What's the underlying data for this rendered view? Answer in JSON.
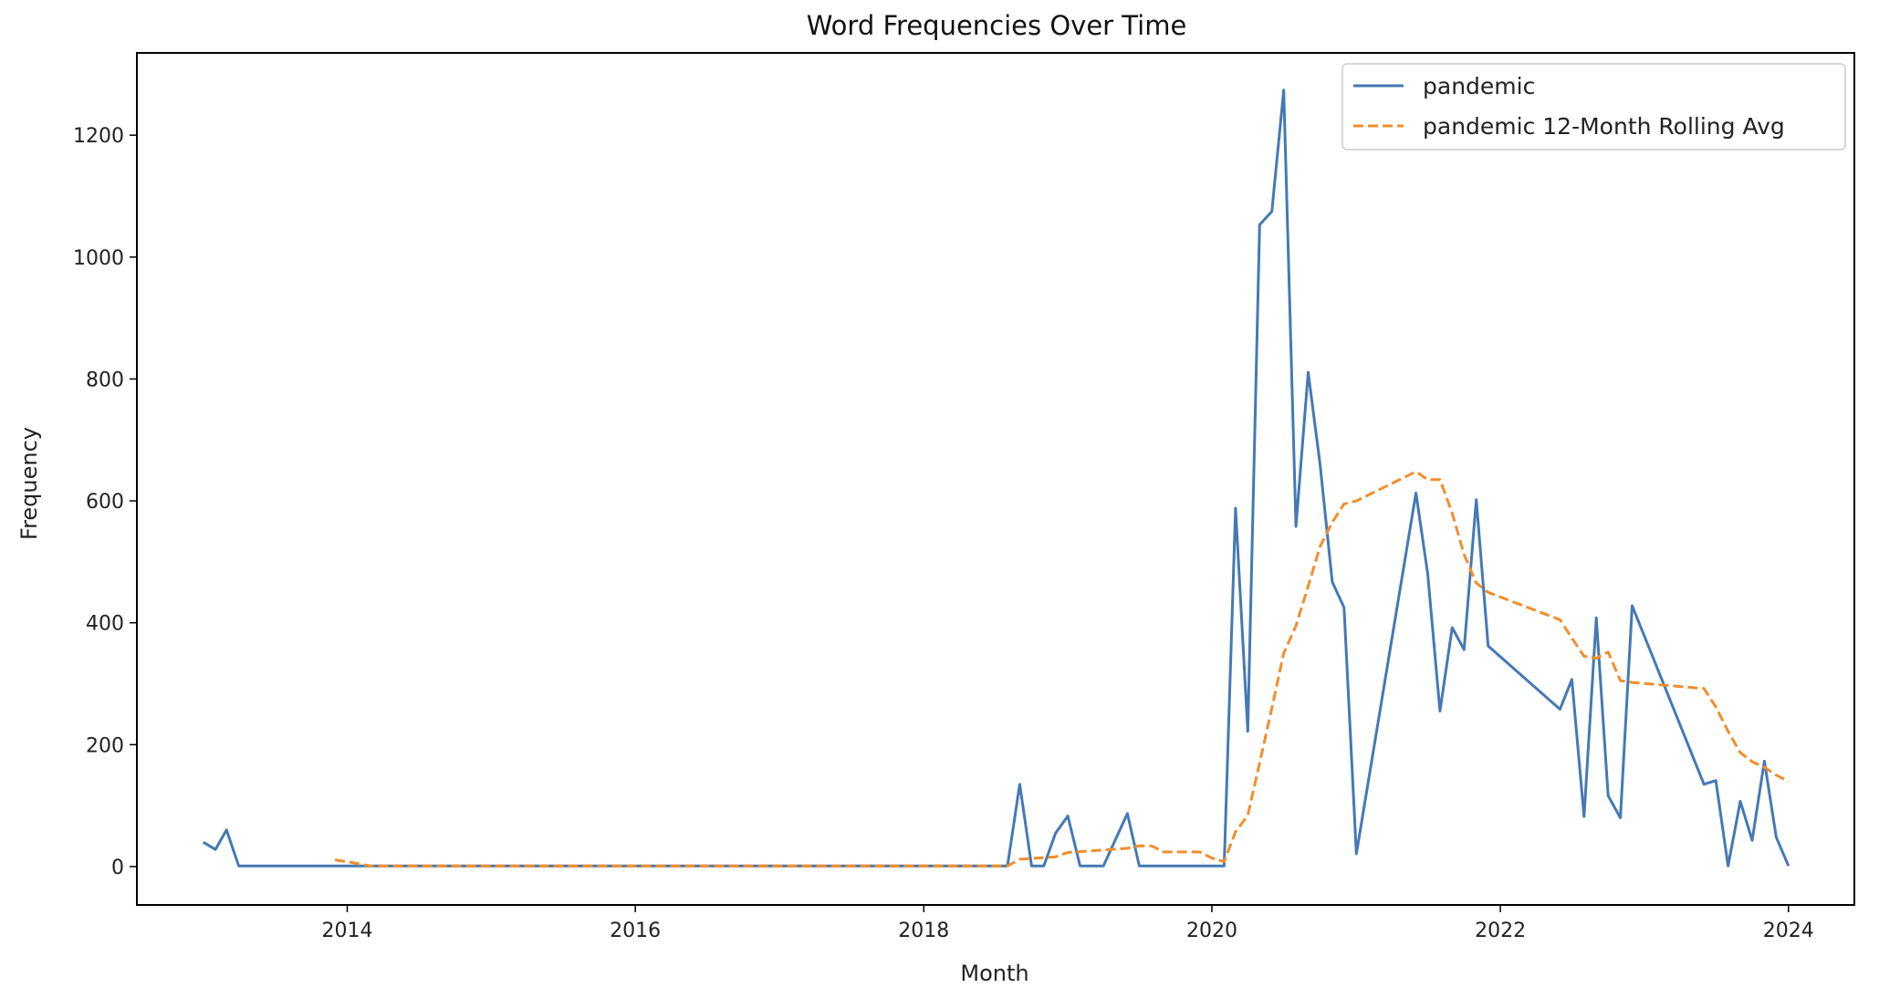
{
  "chart_data": {
    "type": "line",
    "title": "Word Frequencies Over Time",
    "xlabel": "Month",
    "ylabel": "Frequency",
    "x_ticks": [
      "2014",
      "2016",
      "2018",
      "2020",
      "2022",
      "2024"
    ],
    "y_ticks": [
      0,
      200,
      400,
      600,
      800,
      1000,
      1200
    ],
    "xlim": [
      "2012-07-17",
      "2024-06-16"
    ],
    "ylim": [
      -63,
      1335
    ],
    "legend_position": "top-right",
    "colors": {
      "series": "#4479b5",
      "rolling": "#f28e2b",
      "axes": "#000000"
    },
    "series": [
      {
        "name": "pandemic",
        "style": "solid",
        "points": [
          [
            "2013-01-01",
            40
          ],
          [
            "2013-02-01",
            28
          ],
          [
            "2013-03-01",
            60
          ],
          [
            "2013-04-01",
            1
          ],
          [
            "2013-12-01",
            1
          ],
          [
            "2014-06-01",
            1
          ],
          [
            "2015-06-01",
            1
          ],
          [
            "2016-06-01",
            1
          ],
          [
            "2017-06-01",
            1
          ],
          [
            "2018-06-01",
            1
          ],
          [
            "2018-08-01",
            1
          ],
          [
            "2018-09-01",
            135
          ],
          [
            "2018-10-01",
            1
          ],
          [
            "2018-11-01",
            1
          ],
          [
            "2018-12-01",
            55
          ],
          [
            "2019-01-01",
            83
          ],
          [
            "2019-02-01",
            1
          ],
          [
            "2019-04-01",
            1
          ],
          [
            "2019-06-01",
            87
          ],
          [
            "2019-07-01",
            1
          ],
          [
            "2020-02-01",
            1
          ],
          [
            "2020-03-01",
            588
          ],
          [
            "2020-04-01",
            222
          ],
          [
            "2020-05-01",
            1053
          ],
          [
            "2020-06-01",
            1075
          ],
          [
            "2020-07-01",
            1274
          ],
          [
            "2020-08-01",
            558
          ],
          [
            "2020-09-01",
            811
          ],
          [
            "2020-10-01",
            660
          ],
          [
            "2020-11-01",
            467
          ],
          [
            "2020-12-01",
            425
          ],
          [
            "2021-01-01",
            21
          ],
          [
            "2021-06-01",
            613
          ],
          [
            "2021-07-01",
            480
          ],
          [
            "2021-08-01",
            255
          ],
          [
            "2021-09-01",
            392
          ],
          [
            "2021-10-01",
            356
          ],
          [
            "2021-11-01",
            602
          ],
          [
            "2021-12-01",
            362
          ],
          [
            "2022-06-01",
            258
          ],
          [
            "2022-07-01",
            307
          ],
          [
            "2022-08-01",
            82
          ],
          [
            "2022-09-01",
            408
          ],
          [
            "2022-10-01",
            116
          ],
          [
            "2022-11-01",
            80
          ],
          [
            "2022-12-01",
            428
          ],
          [
            "2023-06-01",
            135
          ],
          [
            "2023-07-01",
            141
          ],
          [
            "2023-08-01",
            1
          ],
          [
            "2023-09-01",
            107
          ],
          [
            "2023-10-01",
            43
          ],
          [
            "2023-11-01",
            173
          ],
          [
            "2023-12-01",
            48
          ],
          [
            "2024-01-01",
            1
          ]
        ]
      },
      {
        "name": "pandemic 12-Month Rolling Avg",
        "style": "dashed",
        "points": [
          [
            "2013-12-01",
            11
          ],
          [
            "2014-01-01",
            8
          ],
          [
            "2014-03-01",
            1
          ],
          [
            "2015-06-01",
            1
          ],
          [
            "2017-06-01",
            1
          ],
          [
            "2018-08-01",
            1
          ],
          [
            "2018-09-01",
            12
          ],
          [
            "2018-12-01",
            16
          ],
          [
            "2019-01-01",
            23
          ],
          [
            "2019-06-01",
            30
          ],
          [
            "2019-07-01",
            34
          ],
          [
            "2019-08-01",
            34
          ],
          [
            "2019-09-01",
            24
          ],
          [
            "2019-12-01",
            24
          ],
          [
            "2020-01-01",
            14
          ],
          [
            "2020-02-01",
            8
          ],
          [
            "2020-03-01",
            57
          ],
          [
            "2020-04-01",
            84
          ],
          [
            "2020-05-01",
            170
          ],
          [
            "2020-06-01",
            260
          ],
          [
            "2020-07-01",
            350
          ],
          [
            "2020-08-01",
            395
          ],
          [
            "2020-09-01",
            460
          ],
          [
            "2020-10-01",
            525
          ],
          [
            "2020-11-01",
            565
          ],
          [
            "2020-12-01",
            595
          ],
          [
            "2021-01-01",
            600
          ],
          [
            "2021-06-01",
            648
          ],
          [
            "2021-07-01",
            635
          ],
          [
            "2021-08-01",
            635
          ],
          [
            "2021-09-01",
            580
          ],
          [
            "2021-10-01",
            512
          ],
          [
            "2021-11-01",
            465
          ],
          [
            "2021-12-01",
            450
          ],
          [
            "2022-06-01",
            405
          ],
          [
            "2022-07-01",
            375
          ],
          [
            "2022-08-01",
            345
          ],
          [
            "2022-09-01",
            342
          ],
          [
            "2022-10-01",
            352
          ],
          [
            "2022-11-01",
            305
          ],
          [
            "2022-12-01",
            302
          ],
          [
            "2023-06-01",
            292
          ],
          [
            "2023-07-01",
            262
          ],
          [
            "2023-08-01",
            222
          ],
          [
            "2023-09-01",
            187
          ],
          [
            "2023-10-01",
            172
          ],
          [
            "2023-11-01",
            163
          ],
          [
            "2023-12-01",
            150
          ],
          [
            "2024-01-01",
            140
          ]
        ]
      }
    ]
  }
}
